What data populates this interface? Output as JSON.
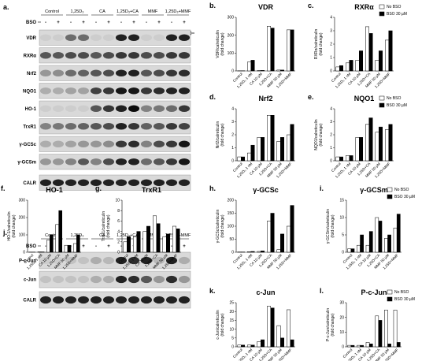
{
  "blots": [
    {
      "panel": "a.",
      "groups": [
        "Control",
        "1,25D₃",
        "CA",
        "1,25D₃+CA",
        "MMF",
        "1,25D₃+MMF"
      ],
      "bso_label": "BSO",
      "bso": [
        "-",
        "+",
        "-",
        "+",
        "-",
        "+",
        "-",
        "+",
        "-",
        "+",
        "-",
        "+"
      ],
      "rows": [
        "VDR",
        "RXRα",
        "Nrf2",
        "NQO1",
        "HO-1",
        "TrxR1",
        "γ-GCSc",
        "γ-GCSm",
        "CALR"
      ]
    },
    {
      "panel": "j.",
      "groups": [
        "Control",
        "1,25D₃",
        "CA",
        "1,25D₃+CA",
        "MMF",
        "1,25D₃+MMF"
      ],
      "bso_label": "BSO",
      "bso": [
        "-",
        "+",
        "-",
        "+",
        "-",
        "+",
        "-",
        "+",
        "-",
        "+",
        "-",
        "+"
      ],
      "rows": [
        "P-c-Jun",
        "c-Jun",
        "CALR"
      ]
    }
  ],
  "chart_data": [
    {
      "type": "bar",
      "panel": "b.",
      "title": "VDR",
      "ylabel": [
        "VDR/calreticulin",
        "(fold change)"
      ],
      "categories": [
        "Control",
        "1,25D₃ 1 nM",
        "CA 10 µM",
        "1,25D+CA",
        "MMF 50 µM",
        "1,25D+MMF"
      ],
      "series": [
        {
          "name": "No BSO",
          "color": "#ffffff",
          "values": [
            1,
            50,
            2,
            250,
            5,
            230
          ]
        },
        {
          "name": "BSO 30 µM",
          "color": "#000000",
          "values": [
            1,
            60,
            3,
            240,
            5,
            230
          ]
        }
      ],
      "ylim": [
        0,
        300
      ],
      "yticks": [
        0,
        100,
        200,
        300
      ]
    },
    {
      "type": "bar",
      "panel": "c.",
      "title": "RXRα",
      "ylabel": [
        "RXRα/calreticulin",
        "(fold change)"
      ],
      "categories": [
        "Control",
        "1,25D₃ 1 nM",
        "CA 10 µM",
        "1,25D+CA",
        "MMF 50 µM",
        "1,25D+MMF"
      ],
      "series": [
        {
          "name": "No BSO",
          "color": "#ffffff",
          "values": [
            0.3,
            0.6,
            0.8,
            3.3,
            0.8,
            2.3
          ]
        },
        {
          "name": "BSO 30 µM",
          "color": "#000000",
          "values": [
            0.4,
            0.8,
            1.5,
            2.8,
            1.5,
            3.0
          ]
        }
      ],
      "ylim": [
        0,
        4
      ],
      "yticks": [
        0,
        1,
        2,
        3,
        4
      ],
      "legend": "upper right"
    },
    {
      "type": "bar",
      "panel": "d.",
      "title": "Nrf2",
      "ylabel": [
        "Nrf2/calreticulin",
        "(fold change)"
      ],
      "categories": [
        "Control",
        "1,25D₃ 1 nM",
        "CA 10 µM",
        "1,25D+CA",
        "MMF 50 µM",
        "1,25D+MMF"
      ],
      "series": [
        {
          "name": "No BSO",
          "color": "#ffffff",
          "values": [
            0.3,
            0.6,
            1.8,
            3.5,
            1.5,
            2.0
          ]
        },
        {
          "name": "BSO 30 µM",
          "color": "#000000",
          "values": [
            0.3,
            1.2,
            1.8,
            3.5,
            1.8,
            2.8
          ]
        }
      ],
      "ylim": [
        0,
        4
      ],
      "yticks": [
        0,
        1,
        2,
        3,
        4
      ]
    },
    {
      "type": "bar",
      "panel": "e.",
      "title": "NQO1",
      "ylabel": [
        "NQO1/calreticulin",
        "(fold change)"
      ],
      "categories": [
        "Control",
        "1,25D₃ 1 nM",
        "CA 10 µM",
        "1,25D+CA",
        "MMF 50 µM",
        "1,25D+MMF"
      ],
      "series": [
        {
          "name": "No BSO",
          "color": "#ffffff",
          "values": [
            0.3,
            0.4,
            1.8,
            2.8,
            2.2,
            2.4
          ]
        },
        {
          "name": "BSO 30 µM",
          "color": "#000000",
          "values": [
            0.3,
            0.4,
            1.8,
            3.3,
            2.6,
            2.8
          ]
        }
      ],
      "ylim": [
        0,
        4
      ],
      "yticks": [
        0,
        1,
        2,
        3,
        4
      ],
      "legend": "upper right"
    },
    {
      "type": "bar",
      "panel": "f.",
      "title": "HO-1",
      "ylabel": [
        "HO-1/calreticulin",
        "(fold change)"
      ],
      "categories": [
        "Control",
        "1,25D₃ 1 nM",
        "CA 10 µM",
        "1,25D+CA",
        "MMF 50 µM",
        "1,25D+MMF"
      ],
      "series": [
        {
          "name": "No BSO",
          "color": "#ffffff",
          "values": [
            1,
            2,
            70,
            160,
            40,
            50
          ]
        },
        {
          "name": "BSO 30 µM",
          "color": "#000000",
          "values": [
            1,
            2,
            100,
            240,
            40,
            100
          ]
        }
      ],
      "ylim": [
        0,
        300
      ],
      "yticks": [
        0,
        100,
        200,
        300
      ]
    },
    {
      "type": "bar",
      "panel": "g.",
      "title": "TrxR1",
      "ylabel": [
        "TrxR1/calreticulin",
        "(fold change)"
      ],
      "categories": [
        "Control",
        "1,25D₃ 1 nM",
        "CA 10 µM",
        "1,25D+CA",
        "MMF 50 µM",
        "1,25D+MMF"
      ],
      "series": [
        {
          "name": "No BSO",
          "color": "#ffffff",
          "values": [
            2,
            3,
            4,
            7,
            3,
            5
          ]
        },
        {
          "name": "BSO 30 µM",
          "color": "#000000",
          "values": [
            3,
            4,
            5,
            5.5,
            3.5,
            4.5
          ]
        }
      ],
      "ylim": [
        0,
        10
      ],
      "yticks": [
        0,
        2,
        4,
        6,
        8,
        10
      ]
    },
    {
      "type": "bar",
      "panel": "h.",
      "title": "γ-GCSc",
      "ylabel": [
        "γ-GCSc/calreticulin",
        "(fold change)"
      ],
      "categories": [
        "Control",
        "1,25D₃ 1 nM",
        "CA 10 µM",
        "1,25D+CA",
        "MMF 50 µM",
        "1,25D+MMF"
      ],
      "series": [
        {
          "name": "No BSO",
          "color": "#ffffff",
          "values": [
            1,
            2,
            3,
            120,
            10,
            100
          ]
        },
        {
          "name": "BSO 30 µM",
          "color": "#000000",
          "values": [
            1,
            3,
            5,
            150,
            70,
            180
          ]
        }
      ],
      "ylim": [
        0,
        200
      ],
      "yticks": [
        0,
        50,
        100,
        150,
        200
      ]
    },
    {
      "type": "bar",
      "panel": "i.",
      "title": "γ-GCSm",
      "ylabel": [
        "γ-GCSm/calreticulin",
        "(fold change)"
      ],
      "categories": [
        "Control",
        "1,25D₃ 1 nM",
        "CA 10 µM",
        "1,25D+CA",
        "MMF 50 µM",
        "1,25D+MMF"
      ],
      "series": [
        {
          "name": "No BSO",
          "color": "#ffffff",
          "values": [
            1,
            2,
            2,
            10,
            4,
            7
          ]
        },
        {
          "name": "BSO 30 µM",
          "color": "#000000",
          "values": [
            1,
            5,
            6,
            9,
            5,
            11
          ]
        }
      ],
      "ylim": [
        0,
        15
      ],
      "yticks": [
        0,
        5,
        10,
        15
      ],
      "legend": "upper right"
    },
    {
      "type": "bar",
      "panel": "k.",
      "title": "c-Jun",
      "ylabel": [
        "c-Jun/calreticulin",
        "(fold change)"
      ],
      "categories": [
        "Control",
        "1,25D₃ 1 nM",
        "CA 10 µM",
        "1,25D+CA",
        "MMF 50 µM",
        "1,25D+MMF"
      ],
      "series": [
        {
          "name": "No BSO",
          "color": "#ffffff",
          "values": [
            1,
            1,
            3,
            23,
            12,
            21
          ]
        },
        {
          "name": "BSO 30 µM",
          "color": "#000000",
          "values": [
            1,
            1,
            4,
            22,
            5,
            4
          ]
        }
      ],
      "ylim": [
        0,
        25
      ],
      "yticks": [
        0,
        5,
        10,
        15,
        20,
        25
      ]
    },
    {
      "type": "bar",
      "panel": "l.",
      "title": "P-c-Jun",
      "ylabel": [
        "P-c-Jun/calreticulin",
        "(fold change)"
      ],
      "categories": [
        "Control",
        "1,25D₃ 1 nM",
        "CA 10 µM",
        "1,25D+CA",
        "MMF 50 µM",
        "1,25D+MMF"
      ],
      "series": [
        {
          "name": "No BSO",
          "color": "#ffffff",
          "values": [
            1,
            1,
            3,
            21,
            25,
            25
          ]
        },
        {
          "name": "BSO 30 µM",
          "color": "#000000",
          "values": [
            1,
            1,
            2,
            18,
            2,
            3
          ]
        }
      ],
      "ylim": [
        0,
        30
      ],
      "yticks": [
        0,
        10,
        20,
        30
      ],
      "legend": "upper right"
    }
  ]
}
